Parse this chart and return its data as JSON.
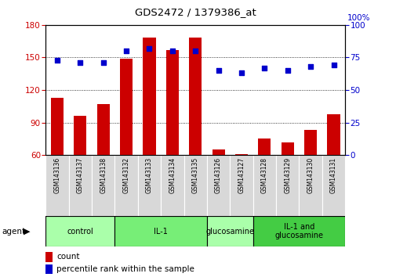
{
  "title": "GDS2472 / 1379386_at",
  "samples": [
    "GSM143136",
    "GSM143137",
    "GSM143138",
    "GSM143132",
    "GSM143133",
    "GSM143134",
    "GSM143135",
    "GSM143126",
    "GSM143127",
    "GSM143128",
    "GSM143129",
    "GSM143130",
    "GSM143131"
  ],
  "count_values": [
    113,
    96,
    107,
    149,
    168,
    157,
    168,
    65,
    61,
    75,
    72,
    83,
    98
  ],
  "percentile_values": [
    73,
    71,
    71,
    80,
    82,
    80,
    80,
    65,
    63,
    67,
    65,
    68,
    69
  ],
  "ylim_left": [
    60,
    180
  ],
  "ylim_right": [
    0,
    100
  ],
  "yticks_left": [
    60,
    90,
    120,
    150,
    180
  ],
  "yticks_right": [
    0,
    25,
    50,
    75,
    100
  ],
  "groups": [
    {
      "label": "control",
      "start": 0,
      "end": 3,
      "color": "#aaffaa"
    },
    {
      "label": "IL-1",
      "start": 3,
      "end": 7,
      "color": "#77ee77"
    },
    {
      "label": "glucosamine",
      "start": 7,
      "end": 9,
      "color": "#aaffaa"
    },
    {
      "label": "IL-1 and\nglucosamine",
      "start": 9,
      "end": 13,
      "color": "#44cc44"
    }
  ],
  "bar_color": "#cc0000",
  "dot_color": "#0000cc",
  "bar_width": 0.55,
  "agent_label": "agent",
  "legend_count_label": "count",
  "legend_pct_label": "percentile rank within the sample",
  "tick_color_left": "#cc0000",
  "tick_color_right": "#0000cc",
  "figure_bg": "#ffffff",
  "axes_bg": "#ffffff",
  "label_area_color": "#cccccc",
  "label_cell_color": "#dddddd"
}
